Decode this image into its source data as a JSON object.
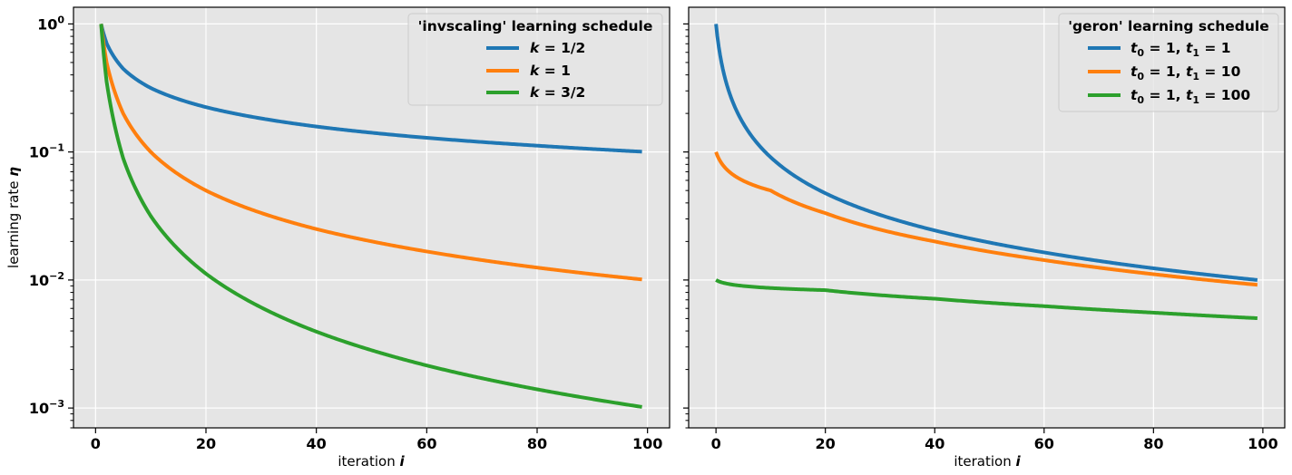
{
  "chart_data": [
    {
      "type": "line",
      "title": "",
      "xlabel": "iteration",
      "xlabel_var": "i",
      "ylabel": "learning rate",
      "ylabel_var": "η",
      "yscale": "log",
      "xlim": [
        -4,
        104
      ],
      "ylim": [
        0.0007,
        1.35
      ],
      "xticks": [
        0,
        20,
        40,
        60,
        80,
        100
      ],
      "yticks": [
        {
          "value": 1,
          "base": "10",
          "exp": "0"
        },
        {
          "value": 0.1,
          "base": "10",
          "exp": "−1"
        },
        {
          "value": 0.01,
          "base": "10",
          "exp": "−2"
        },
        {
          "value": 0.001,
          "base": "10",
          "exp": "−3"
        }
      ],
      "grid": true,
      "legend_position": "top-right",
      "legend_title": "'invscaling' learning schedule",
      "series": [
        {
          "name": "k = 1/2",
          "color": "#1f77b4",
          "formula": "eta = i^(-1/2)",
          "x_start": 1,
          "x_end": 99,
          "points": [
            [
              1,
              1.0
            ],
            [
              2,
              0.707
            ],
            [
              5,
              0.447
            ],
            [
              10,
              0.316
            ],
            [
              20,
              0.224
            ],
            [
              40,
              0.158
            ],
            [
              60,
              0.129
            ],
            [
              80,
              0.112
            ],
            [
              99,
              0.1005
            ]
          ]
        },
        {
          "name": "k = 1",
          "color": "#ff7f0e",
          "formula": "eta = i^(-1)",
          "x_start": 1,
          "x_end": 99,
          "points": [
            [
              1,
              1.0
            ],
            [
              2,
              0.5
            ],
            [
              5,
              0.2
            ],
            [
              10,
              0.1
            ],
            [
              20,
              0.05
            ],
            [
              40,
              0.025
            ],
            [
              60,
              0.0167
            ],
            [
              80,
              0.0125
            ],
            [
              99,
              0.0101
            ]
          ]
        },
        {
          "name": "k = 3/2",
          "color": "#2ca02c",
          "formula": "eta = i^(-3/2)",
          "x_start": 1,
          "x_end": 99,
          "points": [
            [
              1,
              1.0
            ],
            [
              2,
              0.354
            ],
            [
              5,
              0.0894
            ],
            [
              10,
              0.0316
            ],
            [
              20,
              0.0112
            ],
            [
              40,
              0.00395
            ],
            [
              60,
              0.00215
            ],
            [
              80,
              0.0014
            ],
            [
              99,
              0.00102
            ]
          ]
        }
      ]
    },
    {
      "type": "line",
      "title": "",
      "xlabel": "iteration",
      "xlabel_var": "i",
      "ylabel": "",
      "yscale": "log",
      "sharey": true,
      "xlim": [
        -5,
        104
      ],
      "ylim": [
        0.0007,
        1.35
      ],
      "xticks": [
        0,
        20,
        40,
        60,
        80,
        100
      ],
      "grid": true,
      "legend_position": "top-right",
      "legend_title": "'geron' learning schedule",
      "series": [
        {
          "name": "t0 = 1, t1 = 1",
          "color": "#1f77b4",
          "formula": "eta = 1/(i + 1)",
          "x_start": 0,
          "x_end": 99,
          "points": [
            [
              0,
              1.0
            ],
            [
              1,
              0.5
            ],
            [
              4,
              0.2
            ],
            [
              9,
              0.1
            ],
            [
              19,
              0.05
            ],
            [
              39,
              0.025
            ],
            [
              59,
              0.0167
            ],
            [
              79,
              0.0125
            ],
            [
              99,
              0.01
            ]
          ]
        },
        {
          "name": "t0 = 1, t1 = 10",
          "color": "#ff7f0e",
          "formula": "eta = 1/(i + 10)",
          "x_start": 0,
          "x_end": 99,
          "points": [
            [
              0,
              0.1
            ],
            [
              10,
              0.05
            ],
            [
              20,
              0.0333
            ],
            [
              40,
              0.02
            ],
            [
              60,
              0.0143
            ],
            [
              80,
              0.0111
            ],
            [
              99,
              0.00917
            ]
          ]
        },
        {
          "name": "t0 = 1, t1 = 100",
          "color": "#2ca02c",
          "formula": "eta = 1/(i + 100)",
          "x_start": 0,
          "x_end": 99,
          "points": [
            [
              0,
              0.01
            ],
            [
              20,
              0.00833
            ],
            [
              40,
              0.00714
            ],
            [
              60,
              0.00625
            ],
            [
              80,
              0.00556
            ],
            [
              99,
              0.00503
            ]
          ]
        }
      ]
    }
  ]
}
